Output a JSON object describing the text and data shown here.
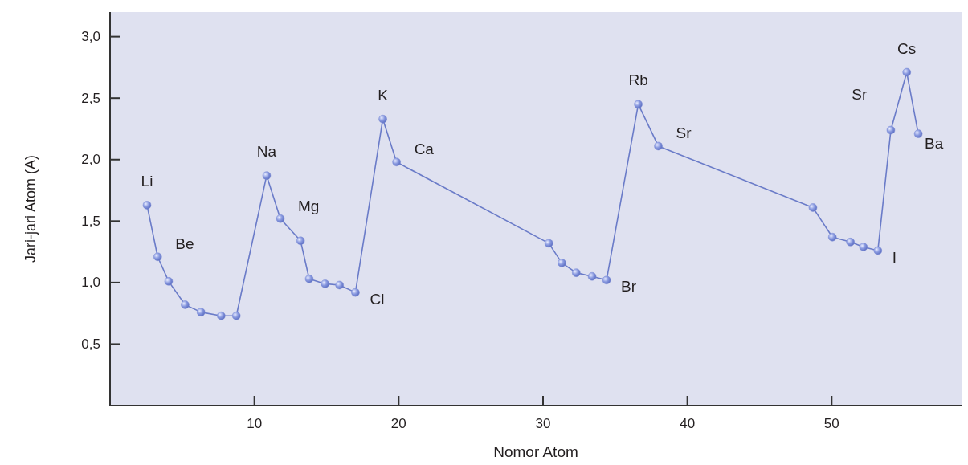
{
  "chart_data": {
    "type": "line",
    "xlabel": "Nomor Atom",
    "ylabel": "Jari-jari Atom (A)",
    "xlim": [
      0,
      59
    ],
    "ylim": [
      0,
      3.2
    ],
    "xticks": [
      10,
      20,
      30,
      40,
      50
    ],
    "yticks": [
      {
        "value": 0.5,
        "label": "0,5"
      },
      {
        "value": 1,
        "label": "1,0"
      },
      {
        "value": 1.5,
        "label": "1,5"
      },
      {
        "value": 2,
        "label": "2,0"
      },
      {
        "value": 2.5,
        "label": "2,5"
      },
      {
        "value": 3,
        "label": "3,0"
      }
    ],
    "grid": false,
    "marker": "circle",
    "line_style": "solid",
    "series": [
      {
        "color": "#6a7bc8",
        "x": [
          2.56,
          3.3,
          4.06,
          5.2,
          6.3,
          7.7,
          8.75,
          10.85,
          11.8,
          13.2,
          13.8,
          14.9,
          15.9,
          17.0,
          18.9,
          19.85,
          30.4,
          31.3,
          32.3,
          33.4,
          34.4,
          36.6,
          37.99,
          48.7,
          50.05,
          51.3,
          52.2,
          53.2,
          54.1,
          55.2,
          56.0
        ],
        "values": [
          1.63,
          1.21,
          1.01,
          0.82,
          0.76,
          0.73,
          0.73,
          1.87,
          1.52,
          1.34,
          1.03,
          0.99,
          0.98,
          0.92,
          2.33,
          1.98,
          1.32,
          1.16,
          1.08,
          1.05,
          1.02,
          2.45,
          2.11,
          1.61,
          1.37,
          1.33,
          1.29,
          1.26,
          2.24,
          2.71,
          2.21
        ]
      }
    ],
    "annotations": [
      {
        "text": "Li",
        "x": 2.56,
        "y": 1.63
      },
      {
        "text": "Be",
        "x": 3.3,
        "y": 1.21
      },
      {
        "text": "Na",
        "x": 10.85,
        "y": 1.87
      },
      {
        "text": "Mg",
        "x": 11.8,
        "y": 1.52
      },
      {
        "text": "Cl",
        "x": 17.0,
        "y": 0.92
      },
      {
        "text": "K",
        "x": 18.9,
        "y": 2.33
      },
      {
        "text": "Ca",
        "x": 19.85,
        "y": 1.98
      },
      {
        "text": "Br",
        "x": 34.4,
        "y": 1.02
      },
      {
        "text": "Rb",
        "x": 36.6,
        "y": 2.45
      },
      {
        "text": "Sr",
        "x": 37.99,
        "y": 2.11
      },
      "Sr",
      {
        "text": "Cs",
        "x": 55.2,
        "y": 2.71
      },
      {
        "text": "I",
        "x": 53.2,
        "y": 1.26
      },
      {
        "text": "Ba",
        "x": 56.0,
        "y": 2.21
      }
    ]
  }
}
